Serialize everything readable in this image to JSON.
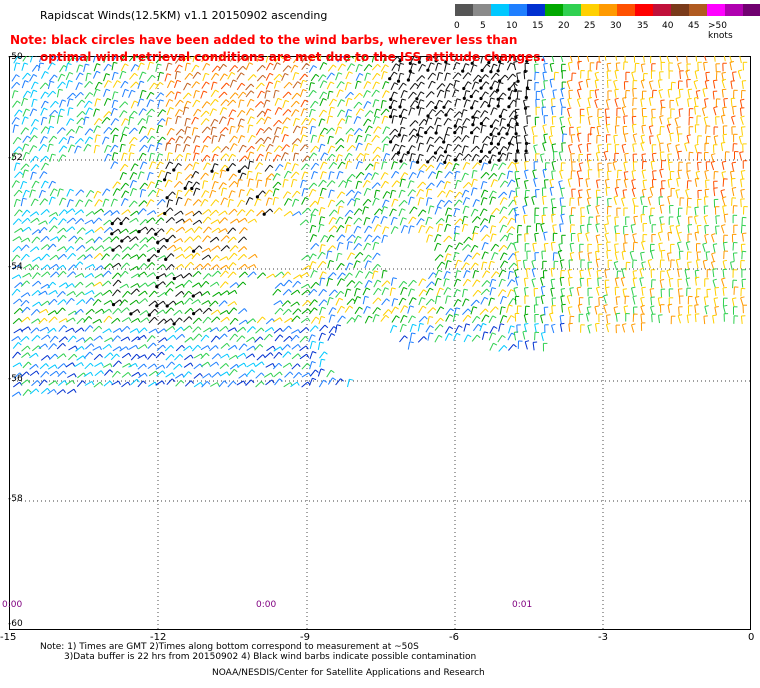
{
  "header": {
    "title": "Rapidscat Winds(12.5KM) v1.1 20150902 ascending",
    "note_line1": "Note: black circles have been added to the wind barbs, wherever less than",
    "note_line2": "optimal wind retrieval conditions are met due to the ISS attitude changes."
  },
  "colorbar": {
    "labels": [
      "0",
      "5",
      "10",
      "15",
      "20",
      "25",
      "30",
      "35",
      "40",
      "45",
      ">50 knots"
    ],
    "colors": [
      "#555555",
      "#8a8a8a",
      "#00c8ff",
      "#1f7fff",
      "#0030d0",
      "#00a800",
      "#30d050",
      "#ffd000",
      "#ff9a00",
      "#ff5000",
      "#ff0000",
      "#c0103a",
      "#7a3a1a",
      "#b05a20",
      "#ff00ff",
      "#b000b0",
      "#700070",
      "#3a0060"
    ]
  },
  "map": {
    "lat_labels": [
      "-50",
      "-52",
      "-54",
      "-56",
      "-58",
      "-60"
    ],
    "lon_labels": [
      "-15",
      "-12",
      "-9",
      "-6",
      "-3",
      "0"
    ],
    "time_labels": [
      "0:00",
      "0:00",
      "0:01"
    ]
  },
  "footer": {
    "line1": "Note: 1) Times are GMT 2)Times along bottom correspond to measurement at ~50S",
    "line2": "3)Data buffer is 22 hrs from 20150902 4) Black wind barbs indicate possible contamination",
    "line3": "NOAA/NESDIS/Center for Satellite Applications and Research"
  }
}
